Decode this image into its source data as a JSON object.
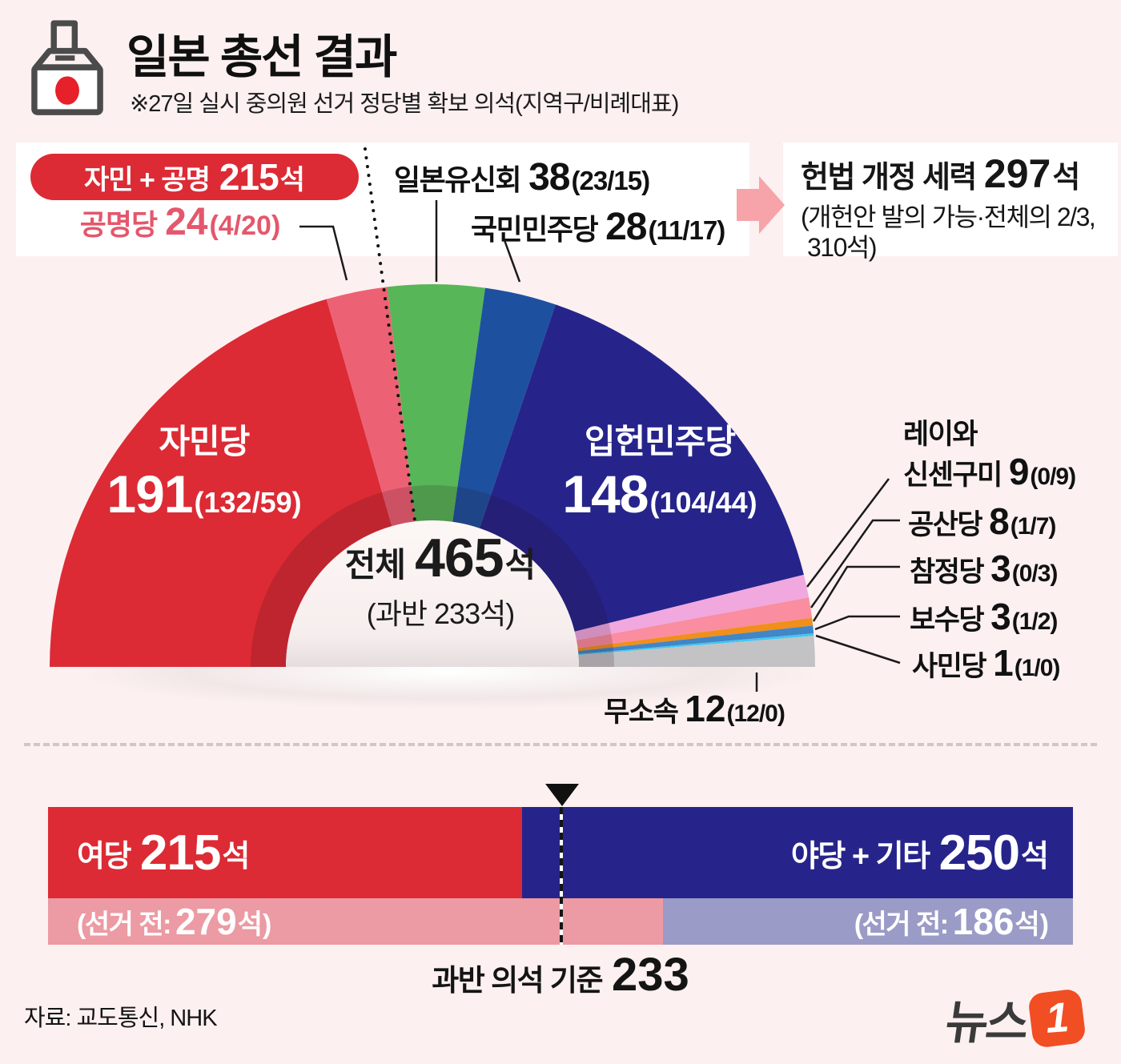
{
  "header": {
    "title": "일본 총선 결과",
    "subtitle": "※27일 실시 중의원 선거 정당별 확보 의석(지역구/비례대표)"
  },
  "callouts": {
    "ruling_pill": {
      "label": "자민 + 공명",
      "value": "215",
      "unit": "석",
      "color": "#dc2b35"
    },
    "constitution_box": {
      "label": "헌법 개정 세력",
      "value": "297",
      "unit": "석",
      "note_line1": "(개헌안 발의 가능·전체의 2/3,",
      "note_line2": "310석)"
    }
  },
  "chart_data": [
    {
      "type": "half_donut",
      "title": "27일 실시 중의원 선거 정당별 확보 의석",
      "total": 465,
      "center": {
        "label": "전체",
        "value": "465",
        "unit": "석",
        "note": "(과반 233석)"
      },
      "parties": [
        {
          "name": "자민당",
          "seats": 191,
          "district": 132,
          "proportional": 59,
          "detail": "(132/59)",
          "color": "#dc2b35"
        },
        {
          "name": "공명당",
          "seats": 24,
          "district": 4,
          "proportional": 20,
          "detail": "(4/20)",
          "color": "#ec6173"
        },
        {
          "name": "일본유신회",
          "seats": 38,
          "district": 23,
          "proportional": 15,
          "detail": "(23/15)",
          "color": "#57b657"
        },
        {
          "name": "국민민주당",
          "seats": 28,
          "district": 11,
          "proportional": 17,
          "detail": "(11/17)",
          "color": "#1d519f"
        },
        {
          "name": "입헌민주당",
          "seats": 148,
          "district": 104,
          "proportional": 44,
          "detail": "(104/44)",
          "color": "#26248b"
        },
        {
          "name": "레이와 신센구미",
          "name_line1": "레이와",
          "name_line2": "신센구미",
          "seats": 9,
          "district": 0,
          "proportional": 9,
          "detail": "(0/9)",
          "color": "#f0a8de"
        },
        {
          "name": "공산당",
          "seats": 8,
          "district": 1,
          "proportional": 7,
          "detail": "(1/7)",
          "color": "#fa8d9f"
        },
        {
          "name": "참정당",
          "seats": 3,
          "district": 0,
          "proportional": 3,
          "detail": "(0/3)",
          "color": "#f08f1b"
        },
        {
          "name": "보수당",
          "seats": 3,
          "district": 1,
          "proportional": 2,
          "detail": "(1/2)",
          "color": "#4186c7"
        },
        {
          "name": "사민당",
          "seats": 1,
          "district": 1,
          "proportional": 0,
          "detail": "(1/0)",
          "color": "#3fc8f3"
        },
        {
          "name": "무소속",
          "seats": 12,
          "district": 12,
          "proportional": 0,
          "detail": "(12/0)",
          "color": "#c3c2c4"
        }
      ]
    },
    {
      "type": "stacked_bar",
      "total": 465,
      "majority": {
        "label": "과반 의석 기준",
        "value": "233",
        "seats": 233
      },
      "result_row": {
        "left": {
          "label": "여당",
          "value": "215",
          "unit": "석",
          "seats": 215,
          "color": "#dc2b35"
        },
        "right": {
          "label": "야당 + 기타",
          "value": "250",
          "unit": "석",
          "seats": 250,
          "color": "#26248b"
        }
      },
      "before_row": {
        "left": {
          "prefix": "(선거 전:",
          "value": "279",
          "suffix": "석)",
          "seats": 279,
          "color": "#ec9aa3"
        },
        "right": {
          "prefix": "(선거 전:",
          "value": "186",
          "suffix": "석)",
          "seats": 186,
          "color": "#9b9bc7"
        }
      }
    }
  ],
  "footer": {
    "source": "자료: 교도통신, NHK",
    "logo": {
      "text": "뉴스",
      "number": "1"
    }
  }
}
